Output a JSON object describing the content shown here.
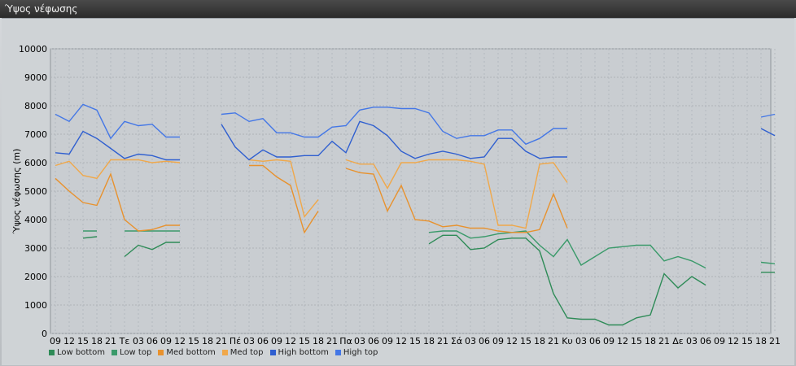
{
  "window": {
    "title": "Ύψος νέφωσης"
  },
  "chart_data": {
    "type": "line",
    "ylabel": "Ύψος νέφωσης (m)",
    "ylim": [
      0,
      10000
    ],
    "yticks": [
      0,
      1000,
      2000,
      3000,
      4000,
      5000,
      6000,
      7000,
      8000,
      9000,
      10000
    ],
    "grid": true,
    "legend_position": "bottom-left",
    "x": [
      "09",
      "12",
      "15",
      "18",
      "21",
      "Τε",
      "03",
      "06",
      "09",
      "12",
      "15",
      "18",
      "21",
      "Πέ",
      "03",
      "06",
      "09",
      "12",
      "15",
      "18",
      "21",
      "Πα",
      "03",
      "06",
      "09",
      "12",
      "15",
      "18",
      "21",
      "Σά",
      "03",
      "06",
      "09",
      "12",
      "15",
      "18",
      "21",
      "Κυ",
      "03",
      "06",
      "09",
      "12",
      "15",
      "18",
      "21",
      "Δε",
      "03",
      "06",
      "09",
      "12",
      "15",
      "18",
      "21"
    ],
    "series": [
      {
        "name": "Low bottom",
        "color": "#2e8b57",
        "values": [
          null,
          null,
          3350,
          3400,
          null,
          2700,
          3100,
          2950,
          3200,
          3200,
          null,
          null,
          null,
          null,
          null,
          null,
          null,
          null,
          null,
          null,
          null,
          null,
          null,
          null,
          null,
          null,
          null,
          3150,
          3450,
          3450,
          2950,
          3000,
          3300,
          3350,
          3350,
          2900,
          1400,
          550,
          500,
          500,
          300,
          300,
          550,
          650,
          2100,
          1600,
          2000,
          1700,
          null,
          null,
          null,
          2150,
          2150
        ]
      },
      {
        "name": "Low top",
        "color": "#3a9a6a",
        "values": [
          null,
          null,
          3600,
          3600,
          null,
          3600,
          3600,
          3600,
          3600,
          3600,
          null,
          null,
          null,
          null,
          null,
          null,
          null,
          null,
          null,
          null,
          null,
          null,
          null,
          null,
          null,
          null,
          null,
          3550,
          3600,
          3600,
          3350,
          3400,
          3500,
          3550,
          3600,
          3100,
          2700,
          3300,
          2400,
          2700,
          3000,
          3050,
          3100,
          3100,
          2550,
          2700,
          2550,
          2300,
          null,
          null,
          null,
          2500,
          2450
        ]
      },
      {
        "name": "Med bottom",
        "color": "#e8922e",
        "values": [
          5450,
          5000,
          4600,
          4500,
          5600,
          4000,
          3600,
          3650,
          3800,
          3800,
          null,
          null,
          null,
          null,
          5900,
          5900,
          5500,
          5200,
          3550,
          4300,
          null,
          5800,
          5650,
          5600,
          4300,
          5200,
          4000,
          3950,
          3750,
          3800,
          3700,
          3700,
          3600,
          3550,
          3550,
          3650,
          4900,
          3700,
          null,
          null,
          null,
          null,
          null,
          null,
          null,
          null,
          null,
          null,
          null,
          null,
          null,
          null,
          null
        ]
      },
      {
        "name": "Med top",
        "color": "#f0a84a",
        "values": [
          5900,
          6050,
          5550,
          5450,
          6100,
          6100,
          6100,
          6000,
          6050,
          6000,
          null,
          null,
          null,
          null,
          6100,
          6050,
          6100,
          6050,
          4100,
          4700,
          null,
          6100,
          5950,
          5950,
          5100,
          6000,
          6000,
          6100,
          6100,
          6100,
          6050,
          5950,
          3800,
          3800,
          3700,
          5950,
          6000,
          5300,
          null,
          null,
          null,
          null,
          null,
          null,
          null,
          null,
          null,
          null,
          null,
          null,
          null,
          null,
          null
        ]
      },
      {
        "name": "High bottom",
        "color": "#2f5fd0",
        "values": [
          6350,
          6300,
          7100,
          6850,
          6500,
          6150,
          6300,
          6250,
          6100,
          6100,
          null,
          null,
          7350,
          6550,
          6100,
          6450,
          6200,
          6200,
          6250,
          6250,
          6750,
          6350,
          7450,
          7300,
          6950,
          6400,
          6150,
          6300,
          6400,
          6300,
          6150,
          6200,
          6850,
          6850,
          6400,
          6150,
          6200,
          6200,
          null,
          null,
          null,
          null,
          null,
          null,
          null,
          null,
          null,
          null,
          null,
          null,
          null,
          7200,
          6950
        ]
      },
      {
        "name": "High top",
        "color": "#4477e6",
        "values": [
          7700,
          7450,
          8050,
          7850,
          6850,
          7450,
          7300,
          7350,
          6900,
          6900,
          null,
          null,
          7700,
          7750,
          7450,
          7550,
          7050,
          7050,
          6900,
          6900,
          7250,
          7300,
          7850,
          7950,
          7950,
          7900,
          7900,
          7750,
          7100,
          6850,
          6950,
          6950,
          7150,
          7150,
          6650,
          6850,
          7200,
          7200,
          null,
          null,
          null,
          null,
          null,
          null,
          null,
          null,
          null,
          null,
          null,
          null,
          null,
          7600,
          7700
        ]
      }
    ]
  }
}
